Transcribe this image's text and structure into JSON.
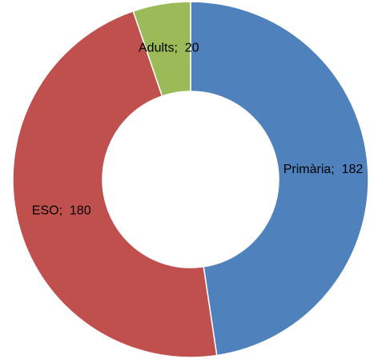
{
  "chart_data": {
    "type": "donut",
    "categories": [
      "Primària",
      "ESO",
      "Adults"
    ],
    "values": [
      182,
      180,
      20
    ],
    "value_labels": [
      "Primària;  182",
      "ESO;  180",
      "Adults;  20"
    ],
    "colors": [
      "#4f81bd",
      "#c0504d",
      "#9bbb59"
    ]
  }
}
